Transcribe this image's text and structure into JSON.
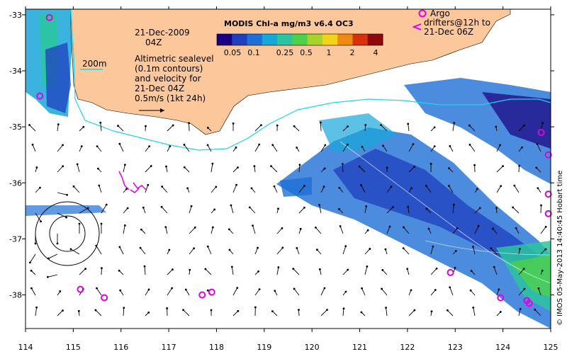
{
  "map": {
    "date_line1": "21-Dec-2009",
    "date_line2": "04Z",
    "legend_200m": "200m",
    "sealevel_lines": [
      "Altimetric sealevel",
      "(0.1m contours)",
      "and velocity for",
      "21-Dec 04Z",
      "0.5m/s (1kt 24h)"
    ],
    "argo_lines": [
      "Argo",
      "drifters@12h to",
      "21-Dec 06Z"
    ],
    "credit": "© IMOS 05-May-2013 14:40:45 Hobart time"
  },
  "colorbar": {
    "title": "MODIS Chl-a mg/m3 v6.4 OC3",
    "labels": [
      "0.05",
      "0.1",
      "0.25",
      "0.5",
      "1",
      "2",
      "4"
    ],
    "colors": [
      "#1a0080",
      "#1f3fbf",
      "#1e6fd6",
      "#17a6d8",
      "#2cc4a0",
      "#4fd04a",
      "#a6d42b",
      "#f2d21a",
      "#f08a12",
      "#d8300d",
      "#8e0a0a"
    ]
  },
  "chart_data": {
    "type": "map",
    "x_ticks": [
      "114",
      "115",
      "116",
      "117",
      "118",
      "119",
      "120",
      "121",
      "122",
      "123",
      "124",
      "125"
    ],
    "y_ticks": [
      "-33",
      "-34",
      "-35",
      "-36",
      "-37",
      "-38"
    ],
    "xlim": [
      114,
      125
    ],
    "ylim": [
      -38.6,
      -32.9
    ],
    "land_color": "#fcc89b",
    "contour_200m_color": "#1ed6e6",
    "argo_color": "#e000e0",
    "argo_floats": [
      {
        "lon": 114.5,
        "lat": -33.05
      },
      {
        "lon": 114.3,
        "lat": -34.45
      },
      {
        "lon": 115.15,
        "lat": -37.9
      },
      {
        "lon": 115.65,
        "lat": -38.05
      },
      {
        "lon": 117.7,
        "lat": -38.0
      },
      {
        "lon": 117.9,
        "lat": -37.95
      },
      {
        "lon": 122.9,
        "lat": -37.6
      },
      {
        "lon": 123.95,
        "lat": -38.05
      },
      {
        "lon": 124.5,
        "lat": -38.1
      },
      {
        "lon": 124.55,
        "lat": -38.15
      },
      {
        "lon": 124.8,
        "lat": -35.1
      },
      {
        "lon": 124.95,
        "lat": -35.5
      },
      {
        "lon": 124.95,
        "lat": -36.2
      },
      {
        "lon": 124.95,
        "lat": -36.55
      }
    ]
  }
}
